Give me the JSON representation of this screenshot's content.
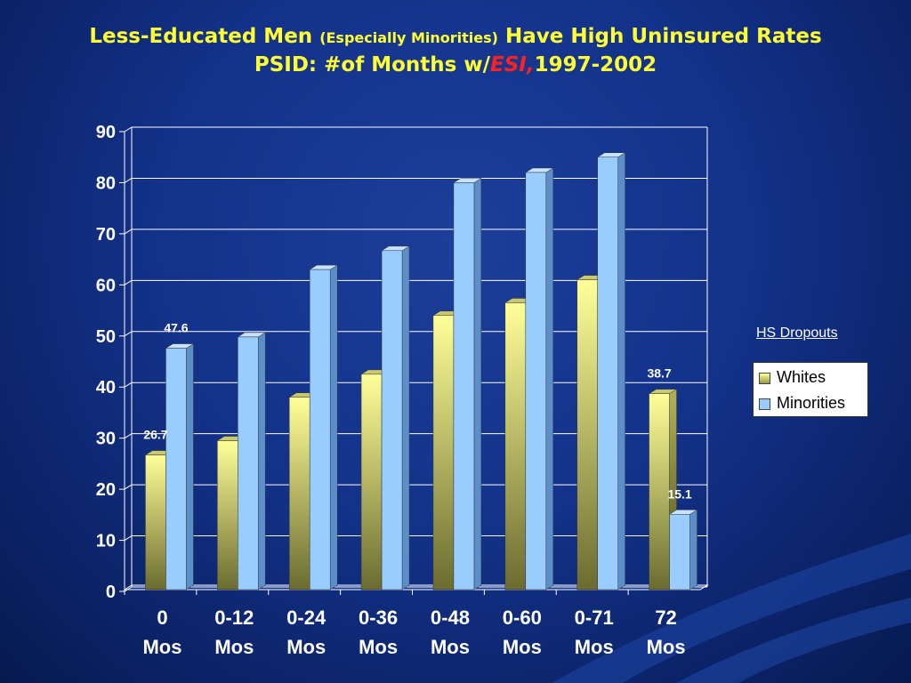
{
  "title": {
    "line1_a": "Less-Educated Men ",
    "line1_b": "(Especially Minorities)",
    "line1_c": " Have High Uninsured Rates",
    "line2_a": "PSID: #of Months w/",
    "line2_b": "ESI,",
    "line2_c": "1997-2002"
  },
  "legend": {
    "title": "HS Dropouts",
    "items": [
      "Whites",
      "Minorities"
    ]
  },
  "colors": {
    "whites_top": "#ffff99",
    "whites_bottom": "#6b6b30",
    "minorities": "#99ccff",
    "grid": "#ffffff",
    "axis_text": "#ffffff"
  },
  "chart_data": {
    "type": "bar",
    "title": "",
    "xlabel": "",
    "ylabel": "",
    "ylim": [
      0,
      90
    ],
    "yticks": [
      "0",
      "10",
      "20",
      "30",
      "40",
      "50",
      "60",
      "70",
      "80",
      "90"
    ],
    "categories": [
      [
        "0",
        "Mos"
      ],
      [
        "0-12",
        "Mos"
      ],
      [
        "0-24",
        "Mos"
      ],
      [
        "0-36",
        "Mos"
      ],
      [
        "0-48",
        "Mos"
      ],
      [
        "0-60",
        "Mos"
      ],
      [
        "0-71",
        "Mos"
      ],
      [
        "72",
        "Mos"
      ]
    ],
    "series": [
      {
        "name": "Whites",
        "values": [
          26.7,
          29.5,
          38,
          42.5,
          54,
          56.5,
          61,
          38.7
        ]
      },
      {
        "name": "Minorities",
        "values": [
          47.6,
          49.8,
          63,
          66.7,
          80,
          82,
          85,
          15.1
        ]
      }
    ],
    "data_labels": [
      {
        "series": 0,
        "index": 0,
        "text": "26.7"
      },
      {
        "series": 1,
        "index": 0,
        "text": "47.6"
      },
      {
        "series": 0,
        "index": 7,
        "text": "38.7"
      },
      {
        "series": 1,
        "index": 7,
        "text": "15.1"
      }
    ],
    "grid": true,
    "legend_position": "right"
  }
}
